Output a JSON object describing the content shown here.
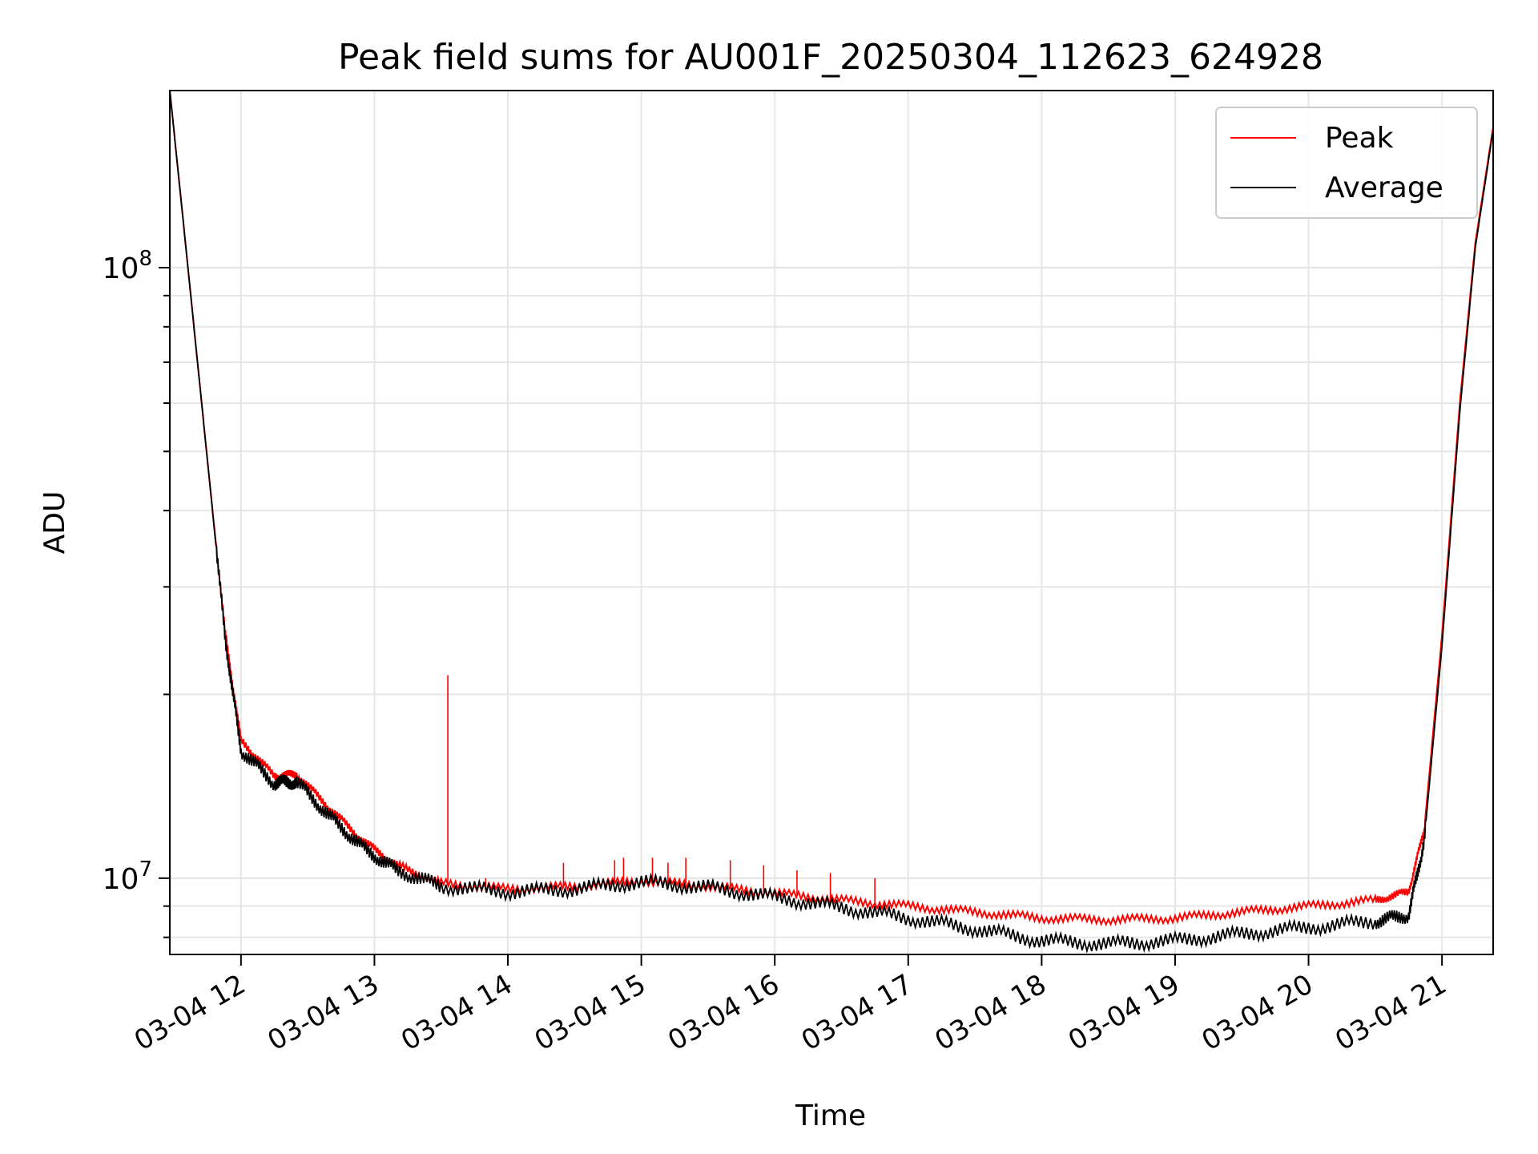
{
  "chart_data": {
    "type": "line",
    "title": "Peak field sums for AU001F_20250304_112623_624928",
    "xlabel": "Time",
    "ylabel": "ADU",
    "yscale": "log",
    "grid": true,
    "legend_position": "top-right",
    "xlim": [
      "2025-03-04 11:28",
      "2025-03-04 21:23"
    ],
    "ylim": [
      7500000,
      195000000
    ],
    "x_ticks": [
      "03-04 12",
      "03-04 13",
      "03-04 14",
      "03-04 15",
      "03-04 16",
      "03-04 17",
      "03-04 18",
      "03-04 19",
      "03-04 20",
      "03-04 21"
    ],
    "y_ticks": [
      {
        "base": "10",
        "exp": "8",
        "value": 100000000
      },
      {
        "base": "10",
        "exp": "7",
        "value": 10000000
      }
    ],
    "series": [
      {
        "name": "Peak",
        "color": "#ff0000",
        "points": [
          [
            "2025-03-04 11:28",
            195000000
          ],
          [
            "2025-03-04 11:35",
            110000000
          ],
          [
            "2025-03-04 11:45",
            48000000
          ],
          [
            "2025-03-04 11:53",
            25000000
          ],
          [
            "2025-03-04 12:00",
            16800000
          ],
          [
            "2025-03-04 12:15",
            14700000
          ],
          [
            "2025-03-04 12:25",
            14800000
          ],
          [
            "2025-03-04 12:40",
            13000000
          ],
          [
            "2025-03-04 12:55",
            11500000
          ],
          [
            "2025-03-04 13:10",
            10500000
          ],
          [
            "2025-03-04 13:30",
            9800000
          ],
          [
            "2025-03-04 14:00",
            9600000
          ],
          [
            "2025-03-04 14:30",
            9700000
          ],
          [
            "2025-03-04 15:00",
            9900000
          ],
          [
            "2025-03-04 15:30",
            9700000
          ],
          [
            "2025-03-04 16:00",
            9450000
          ],
          [
            "2025-03-04 16:30",
            9200000
          ],
          [
            "2025-03-04 17:00",
            9000000
          ],
          [
            "2025-03-04 17:30",
            8800000
          ],
          [
            "2025-03-04 18:00",
            8600000
          ],
          [
            "2025-03-04 18:30",
            8550000
          ],
          [
            "2025-03-04 19:00",
            8600000
          ],
          [
            "2025-03-04 19:30",
            8800000
          ],
          [
            "2025-03-04 20:00",
            9000000
          ],
          [
            "2025-03-04 20:30",
            9200000
          ],
          [
            "2025-03-04 20:45",
            9500000
          ],
          [
            "2025-03-04 20:52",
            12000000
          ],
          [
            "2025-03-04 21:00",
            25000000
          ],
          [
            "2025-03-04 21:08",
            60000000
          ],
          [
            "2025-03-04 21:15",
            110000000
          ],
          [
            "2025-03-04 21:23",
            170000000
          ]
        ],
        "spikes": [
          [
            "2025-03-04 13:33",
            21500000
          ],
          [
            "2025-03-04 13:50",
            10000000
          ],
          [
            "2025-03-04 14:25",
            10600000
          ],
          [
            "2025-03-04 14:48",
            10700000
          ],
          [
            "2025-03-04 14:52",
            10800000
          ],
          [
            "2025-03-04 15:05",
            10800000
          ],
          [
            "2025-03-04 15:12",
            10600000
          ],
          [
            "2025-03-04 15:20",
            10800000
          ],
          [
            "2025-03-04 15:40",
            10700000
          ],
          [
            "2025-03-04 15:55",
            10500000
          ],
          [
            "2025-03-04 16:10",
            10300000
          ],
          [
            "2025-03-04 16:25",
            10200000
          ],
          [
            "2025-03-04 16:45",
            10000000
          ]
        ]
      },
      {
        "name": "Average",
        "color": "#000000",
        "points": [
          [
            "2025-03-04 11:28",
            195000000
          ],
          [
            "2025-03-04 11:35",
            110000000
          ],
          [
            "2025-03-04 11:45",
            48000000
          ],
          [
            "2025-03-04 11:53",
            24500000
          ],
          [
            "2025-03-04 12:00",
            16200000
          ],
          [
            "2025-03-04 12:15",
            14300000
          ],
          [
            "2025-03-04 12:25",
            14400000
          ],
          [
            "2025-03-04 12:40",
            12600000
          ],
          [
            "2025-03-04 12:55",
            11200000
          ],
          [
            "2025-03-04 13:10",
            10300000
          ],
          [
            "2025-03-04 13:30",
            9700000
          ],
          [
            "2025-03-04 14:00",
            9500000
          ],
          [
            "2025-03-04 14:30",
            9600000
          ],
          [
            "2025-03-04 15:00",
            9850000
          ],
          [
            "2025-03-04 15:30",
            9650000
          ],
          [
            "2025-03-04 16:00",
            9300000
          ],
          [
            "2025-03-04 16:30",
            8950000
          ],
          [
            "2025-03-04 17:00",
            8600000
          ],
          [
            "2025-03-04 17:30",
            8250000
          ],
          [
            "2025-03-04 18:00",
            7900000
          ],
          [
            "2025-03-04 18:30",
            7800000
          ],
          [
            "2025-03-04 19:00",
            7900000
          ],
          [
            "2025-03-04 19:30",
            8100000
          ],
          [
            "2025-03-04 20:00",
            8300000
          ],
          [
            "2025-03-04 20:30",
            8500000
          ],
          [
            "2025-03-04 20:45",
            8700000
          ],
          [
            "2025-03-04 20:52",
            11500000
          ],
          [
            "2025-03-04 21:00",
            24000000
          ],
          [
            "2025-03-04 21:08",
            58000000
          ],
          [
            "2025-03-04 21:15",
            108000000
          ],
          [
            "2025-03-04 21:23",
            168000000
          ]
        ]
      }
    ]
  }
}
